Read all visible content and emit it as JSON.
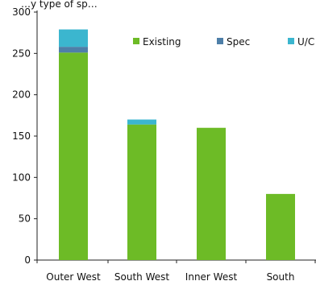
{
  "chart_data": {
    "type": "bar",
    "stacked": true,
    "title": "…y type of sp…",
    "categories": [
      "Outer West",
      "South West",
      "Inner West",
      "South"
    ],
    "series": [
      {
        "name": "Existing",
        "color": "#6dbb26",
        "values": [
          251,
          164,
          160,
          80
        ]
      },
      {
        "name": "Spec",
        "color": "#4e7fa8",
        "values": [
          7,
          0,
          0,
          0
        ]
      },
      {
        "name": "U/C",
        "color": "#3bb6cf",
        "values": [
          21,
          6,
          0,
          0
        ]
      }
    ],
    "ylim": [
      0,
      300
    ],
    "yticks": [
      0,
      50,
      100,
      150,
      200,
      250,
      300
    ],
    "xlabel": "",
    "ylabel": "",
    "grid": false,
    "legend_position": "top-right"
  }
}
